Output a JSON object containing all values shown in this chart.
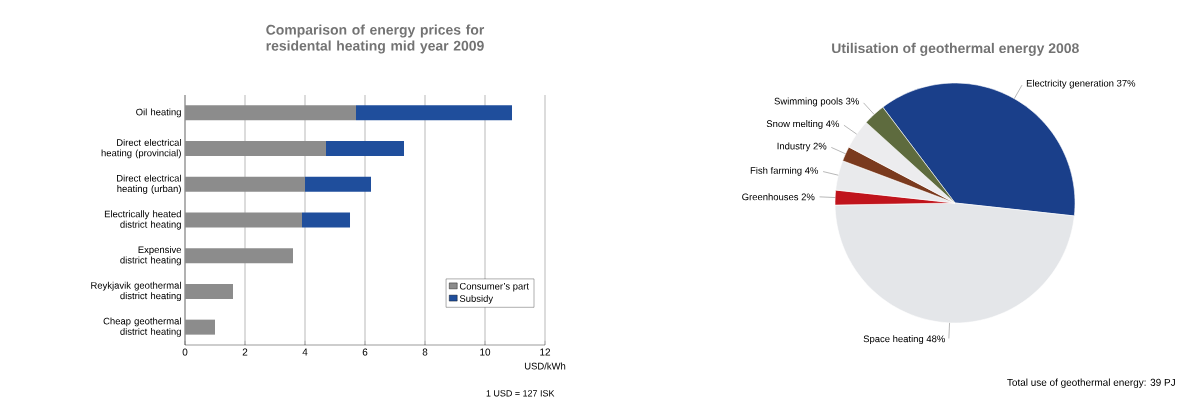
{
  "chart_data": [
    {
      "type": "bar",
      "orientation": "horizontal",
      "stacked": true,
      "title": "Comparison of energy prices for residental heating mid year 2009",
      "xlabel": "USD/kWh",
      "categories": [
        "Oil heating",
        "Direct electrical heating (provincial)",
        "Direct electrical heating (urban)",
        "Electrically heated district heating",
        "Expensive district heating",
        "Reykjavik geothermal district heating",
        "Cheap geothermal district heating"
      ],
      "series": [
        {
          "name": "Consumer’s part",
          "color": "#8c8c8c",
          "values": [
            5.7,
            4.7,
            4.0,
            3.9,
            3.6,
            1.6,
            1.0
          ]
        },
        {
          "name": "Subsidy",
          "color": "#1f4e9c",
          "values": [
            5.2,
            2.6,
            2.2,
            1.6,
            null,
            null,
            null
          ]
        }
      ],
      "xlim": [
        0,
        12
      ],
      "xticks": [
        0,
        2,
        4,
        6,
        8,
        10,
        12
      ],
      "grid": "x",
      "legend": "bottom right",
      "annotations": [
        "1 USD = 127 ISK"
      ]
    },
    {
      "type": "pie",
      "title": "Utilisation of geothermal energy 2008",
      "categories": [
        "Electricity generation",
        "Space heating",
        "Greenhouses",
        "Fish farming",
        "Industry",
        "Snow melting",
        "Swimming pools"
      ],
      "values": [
        37,
        48,
        2,
        4,
        2,
        4,
        3
      ],
      "value_labels": [
        "37%",
        "48%",
        "2%",
        "4%",
        "2%",
        "4%",
        "3%"
      ],
      "colors": [
        "#1a3f8a",
        "#e4e6e9",
        "#c0141c",
        "#e9eaec",
        "#7a3a1e",
        "#ececee",
        "#5e6b3e"
      ],
      "annotations": [
        "Total use of geothermal energy: 39 PJ"
      ]
    }
  ]
}
